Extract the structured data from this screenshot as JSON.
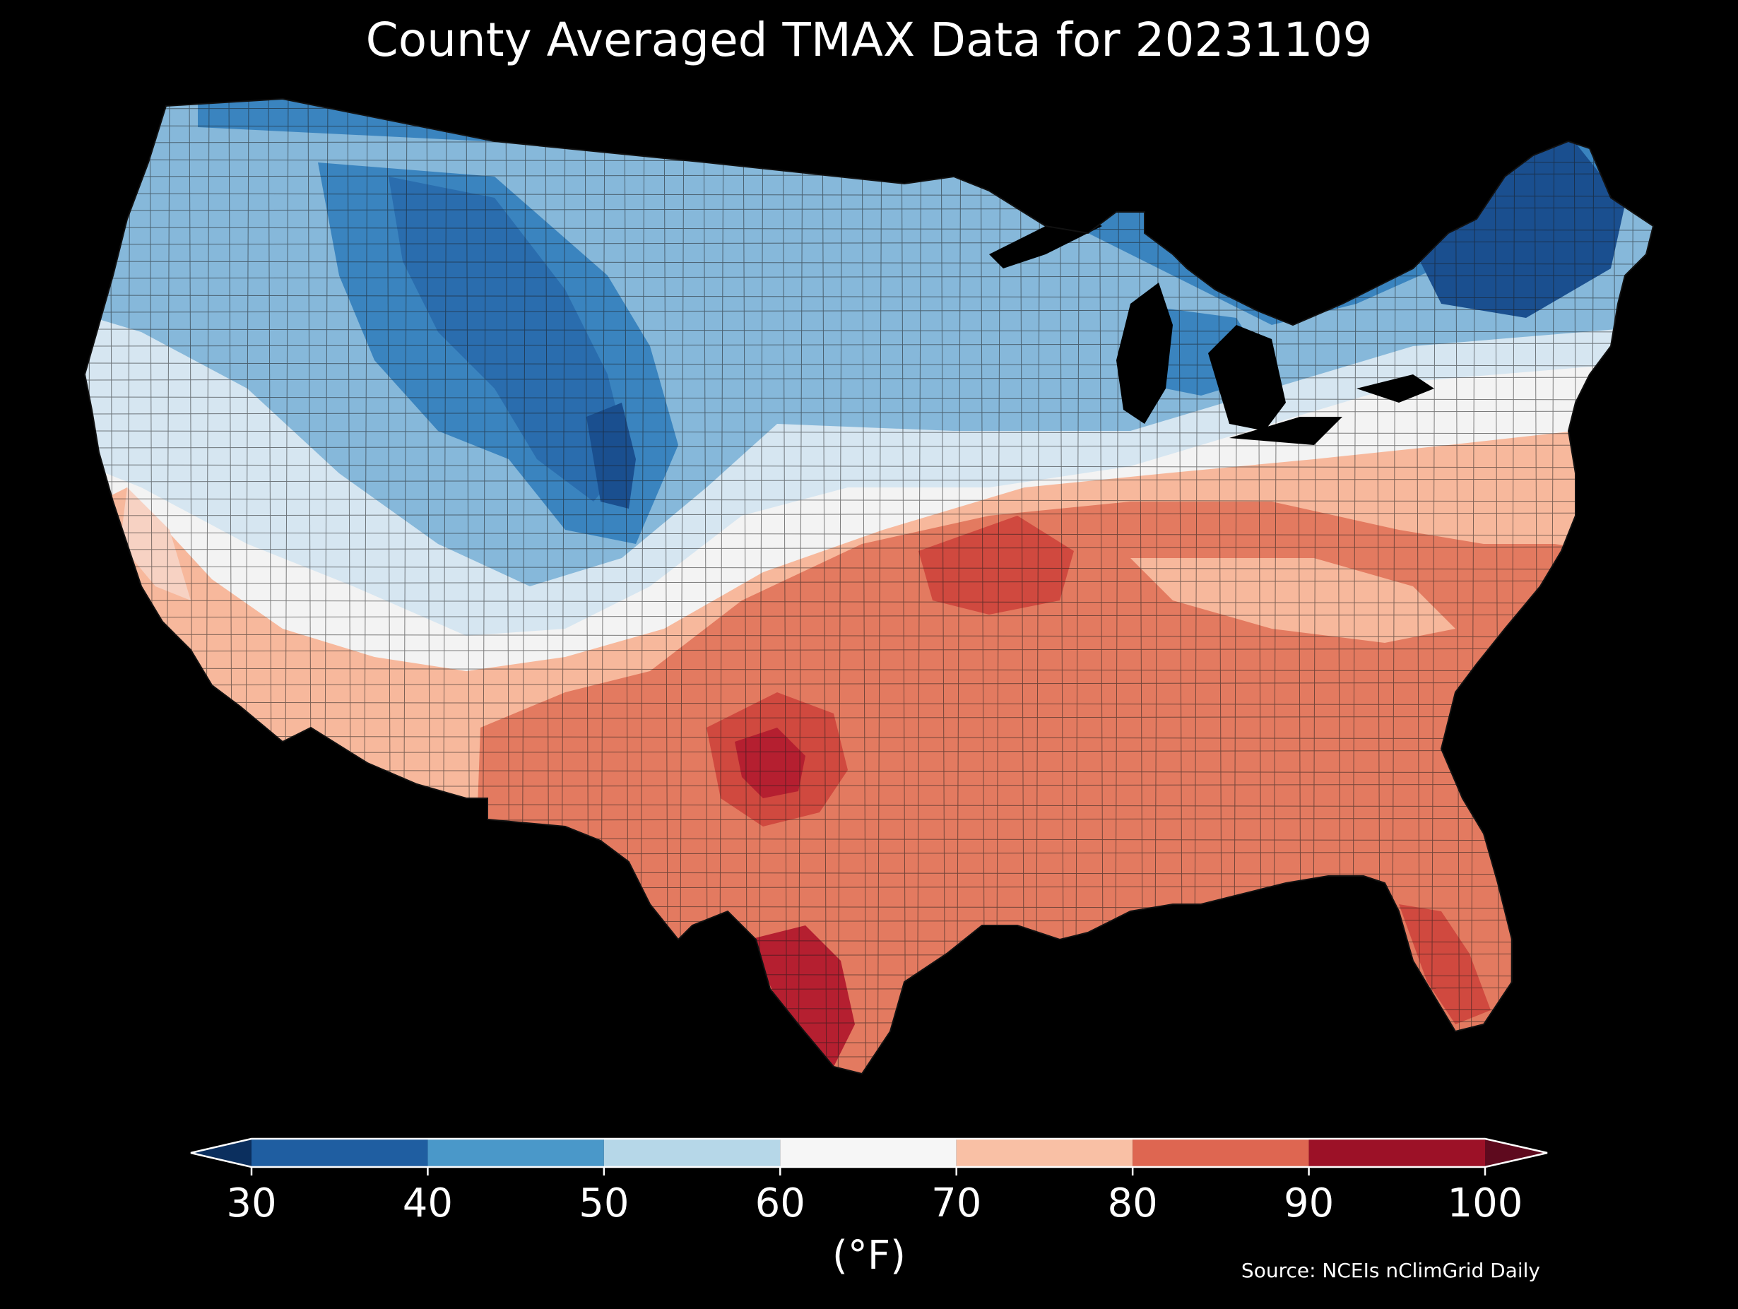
{
  "title": "County Averaged TMAX Data for 20231109",
  "colorbar": {
    "unit_label": "(°F)",
    "ticks": [
      "30",
      "40",
      "50",
      "60",
      "70",
      "80",
      "90",
      "100"
    ],
    "bins": [
      {
        "from": 30,
        "to": 40,
        "color": "#1f5ea1"
      },
      {
        "from": 40,
        "to": 50,
        "color": "#4a98c9"
      },
      {
        "from": 50,
        "to": 60,
        "color": "#b6d7e8"
      },
      {
        "from": 60,
        "to": 70,
        "color": "#f6f6f6"
      },
      {
        "from": 70,
        "to": 80,
        "color": "#f9c0a5"
      },
      {
        "from": 80,
        "to": 90,
        "color": "#de6651"
      },
      {
        "from": 90,
        "to": 100,
        "color": "#9c1127"
      }
    ],
    "under_color": "#0b2f5e",
    "over_color": "#5e0a1e"
  },
  "source": "Source: NCEIs nClimGrid Daily",
  "colors": {
    "background": "#000000",
    "coldest": "#1a4f8f",
    "cold": "#3a84bf",
    "cool": "#86b8da",
    "mild": "#d6e6f1",
    "neutral": "#f3f3f3",
    "warm": "#f7b89c",
    "hot": "#e37a60",
    "hotter": "#d0493f",
    "hottest": "#b51f30",
    "county_lines": "#1a1a1a"
  }
}
